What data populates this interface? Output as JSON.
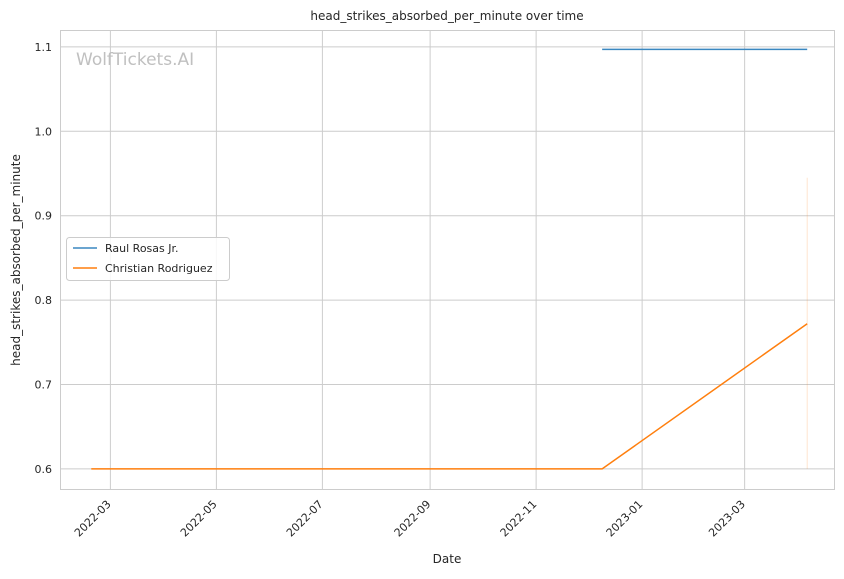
{
  "chart_data": {
    "type": "line",
    "title": "head_strikes_absorbed_per_minute over time",
    "xlabel": "Date",
    "ylabel": "head_strikes_absorbed_per_minute",
    "watermark": "WolfTickets.AI",
    "xlim": [
      "2022-01-31",
      "2023-04-22"
    ],
    "ylim": [
      0.575,
      1.12
    ],
    "x_ticks": [
      "2022-03",
      "2022-05",
      "2022-07",
      "2022-09",
      "2022-11",
      "2023-01",
      "2023-03"
    ],
    "y_ticks": [
      "0.6",
      "0.7",
      "0.8",
      "0.9",
      "1.0",
      "1.1"
    ],
    "grid": true,
    "legend_placement": "center-left",
    "series": [
      {
        "name": "Raul Rosas Jr.",
        "color": "#3a87c0",
        "points": [
          [
            "2022-12-09",
            1.097
          ],
          [
            "2023-04-06",
            1.097
          ]
        ]
      },
      {
        "name": "Christian Rodriguez",
        "color": "#ff7f0e",
        "points": [
          [
            "2022-02-18",
            0.6
          ],
          [
            "2022-12-09",
            0.6
          ],
          [
            "2023-04-06",
            0.772
          ]
        ],
        "band": [
          [
            "2023-04-06",
            0.6,
            0.945
          ]
        ]
      }
    ]
  }
}
